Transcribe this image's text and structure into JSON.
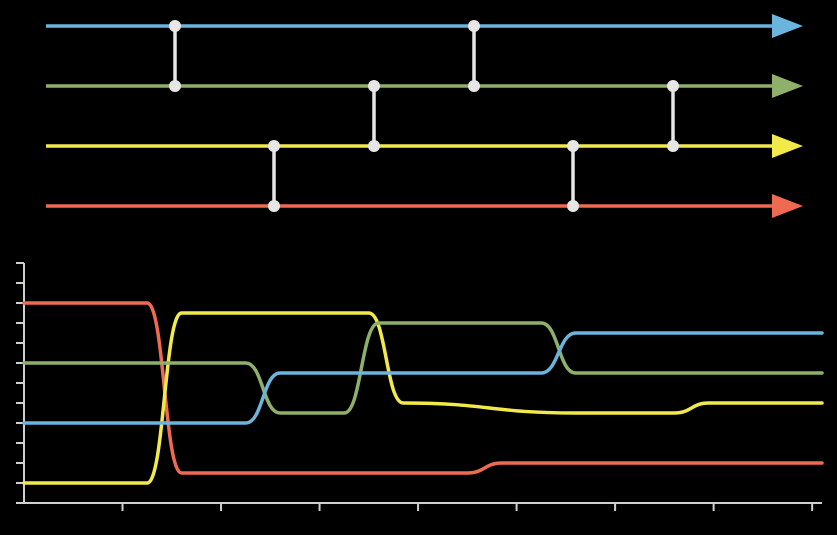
{
  "colors": {
    "background": "#000000",
    "axis": "#cfcfcf",
    "connector": "#e6e6e6",
    "blue": "#6ab4de",
    "green": "#8fb06a",
    "yellow": "#f2ea4a",
    "red": "#ee6a50"
  },
  "wires": [
    {
      "color_key": "blue"
    },
    {
      "color_key": "green"
    },
    {
      "color_key": "yellow"
    },
    {
      "color_key": "red"
    }
  ],
  "comparators": [
    {
      "step": 1,
      "wires": [
        0,
        1
      ]
    },
    {
      "step": 2,
      "wires": [
        2,
        3
      ]
    },
    {
      "step": 3,
      "wires": [
        1,
        2
      ]
    },
    {
      "step": 4,
      "wires": [
        0,
        1
      ]
    },
    {
      "step": 5,
      "wires": [
        2,
        3
      ]
    },
    {
      "step": 6,
      "wires": [
        1,
        2
      ]
    }
  ],
  "chart_data": {
    "type": "line",
    "title": "",
    "xlabel": "",
    "ylabel": "",
    "x_ticks": [
      1,
      2,
      3,
      4,
      5,
      6,
      7,
      8
    ],
    "y_ticks": 12,
    "xlim": [
      0,
      8.1
    ],
    "ylim": [
      0,
      12
    ],
    "series": [
      {
        "color_key": "red",
        "points": [
          [
            0,
            10
          ],
          [
            1.25,
            10
          ],
          [
            1.6,
            1.5
          ],
          [
            4.5,
            1.5
          ],
          [
            4.85,
            2
          ],
          [
            8.1,
            2
          ]
        ]
      },
      {
        "color_key": "yellow",
        "points": [
          [
            0,
            1
          ],
          [
            1.25,
            1
          ],
          [
            1.6,
            9.5
          ],
          [
            3.5,
            9.5
          ],
          [
            3.85,
            5
          ],
          [
            5.6,
            4.5
          ],
          [
            6.0,
            4.5
          ],
          [
            6.6,
            4.5
          ],
          [
            6.95,
            5
          ],
          [
            8.1,
            5
          ]
        ]
      },
      {
        "color_key": "green",
        "points": [
          [
            0,
            7
          ],
          [
            2.25,
            7
          ],
          [
            2.6,
            4.5
          ],
          [
            3.25,
            4.5
          ],
          [
            3.6,
            9
          ],
          [
            5.25,
            9
          ],
          [
            5.6,
            6.5
          ],
          [
            5.9,
            6.5
          ],
          [
            6.6,
            6.5
          ],
          [
            6.95,
            6.5
          ],
          [
            8.1,
            6.5
          ]
        ]
      },
      {
        "color_key": "blue",
        "points": [
          [
            0,
            4
          ],
          [
            2.25,
            4
          ],
          [
            2.6,
            6.5
          ],
          [
            5.25,
            6.5
          ],
          [
            5.6,
            8.5
          ],
          [
            8.1,
            8.5
          ]
        ]
      }
    ]
  }
}
